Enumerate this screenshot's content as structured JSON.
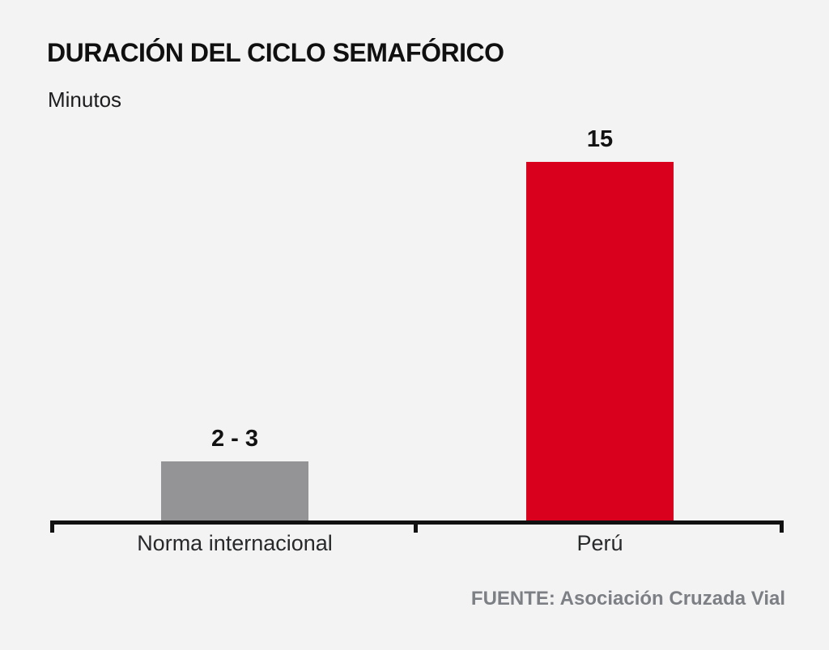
{
  "chart": {
    "title": "DURACIÓN DEL CICLO SEMAFÓRICO",
    "subtitle": "Minutos",
    "source": "FUENTE: Asociación Cruzada Vial"
  },
  "chart_data": {
    "type": "bar",
    "title": "DURACIÓN DEL CICLO SEMAFÓRICO",
    "xlabel": "",
    "ylabel": "Minutos",
    "categories": [
      "Norma internacional",
      "Perú"
    ],
    "values": [
      2.5,
      15
    ],
    "value_labels": [
      "2 - 3",
      "15"
    ],
    "ylim": [
      0,
      15
    ],
    "bar_colors": [
      "#949497",
      "#d9001e"
    ],
    "axis_color": "#111111",
    "background_color": "#f3f3f4",
    "grid": false,
    "legend": false,
    "source": "FUENTE: Asociación Cruzada Vial"
  }
}
